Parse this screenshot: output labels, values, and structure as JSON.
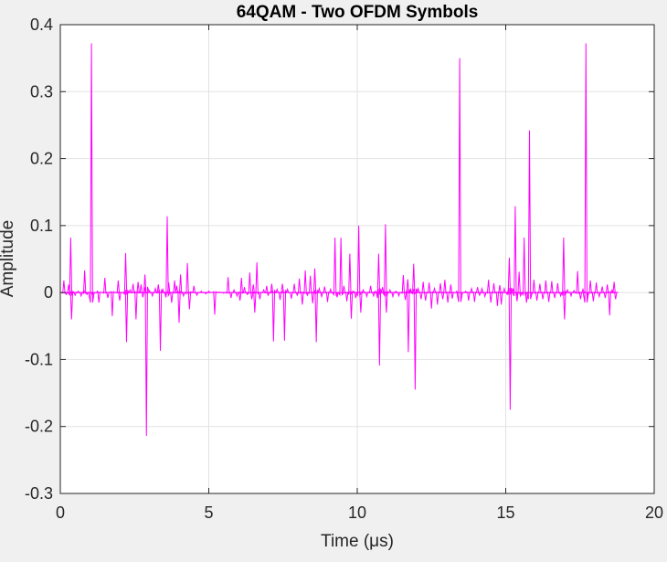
{
  "chart_data": {
    "type": "line",
    "title": "64QAM - Two OFDM Symbols",
    "xlabel": "Time (μs)",
    "ylabel": "Amplitude",
    "xlim": [
      0,
      20
    ],
    "ylim": [
      -0.3,
      0.4
    ],
    "xticks": [
      "0",
      "5",
      "10",
      "15",
      "20"
    ],
    "yticks": [
      "0.4",
      "0.3",
      "0.2",
      "0.1",
      "0",
      "-0.1",
      "-0.2",
      "-0.3"
    ],
    "grid": true,
    "line_color": "#ff00ff",
    "x_range_of_data": [
      0.1,
      18.7
    ],
    "series": [
      {
        "values": [
          {
            "x": 0.12,
            "y": 0.018
          },
          {
            "x": 0.2,
            "y": -0.003
          },
          {
            "x": 0.28,
            "y": 0.012
          },
          {
            "x": 0.35,
            "y": 0.082
          },
          {
            "x": 0.38,
            "y": -0.04
          },
          {
            "x": 0.5,
            "y": -0.004
          },
          {
            "x": 0.6,
            "y": 0.002
          },
          {
            "x": 0.7,
            "y": -0.005
          },
          {
            "x": 0.8,
            "y": 0.003
          },
          {
            "x": 0.82,
            "y": 0.033
          },
          {
            "x": 0.9,
            "y": -0.003
          },
          {
            "x": 1.05,
            "y": 0.372
          },
          {
            "x": 1.08,
            "y": -0.004
          },
          {
            "x": 1.25,
            "y": 0.002
          },
          {
            "x": 1.3,
            "y": -0.015
          },
          {
            "x": 1.5,
            "y": 0.022
          },
          {
            "x": 1.6,
            "y": -0.008
          },
          {
            "x": 1.75,
            "y": -0.035
          },
          {
            "x": 1.95,
            "y": 0.018
          },
          {
            "x": 2.0,
            "y": -0.012
          },
          {
            "x": 2.2,
            "y": 0.059
          },
          {
            "x": 2.23,
            "y": -0.074
          },
          {
            "x": 2.35,
            "y": 0.004
          },
          {
            "x": 2.45,
            "y": 0.013
          },
          {
            "x": 2.55,
            "y": -0.04
          },
          {
            "x": 2.62,
            "y": 0.016
          },
          {
            "x": 2.72,
            "y": 0.012
          },
          {
            "x": 2.78,
            "y": -0.007
          },
          {
            "x": 2.85,
            "y": 0.027
          },
          {
            "x": 2.9,
            "y": -0.214
          },
          {
            "x": 3.0,
            "y": 0.003
          },
          {
            "x": 3.1,
            "y": -0.005
          },
          {
            "x": 3.2,
            "y": 0.006
          },
          {
            "x": 3.3,
            "y": 0.012
          },
          {
            "x": 3.37,
            "y": -0.087
          },
          {
            "x": 3.45,
            "y": 0.005
          },
          {
            "x": 3.55,
            "y": -0.006
          },
          {
            "x": 3.6,
            "y": 0.114
          },
          {
            "x": 3.65,
            "y": 0.015
          },
          {
            "x": 3.75,
            "y": -0.015
          },
          {
            "x": 3.85,
            "y": 0.018
          },
          {
            "x": 3.92,
            "y": 0.01
          },
          {
            "x": 4.0,
            "y": -0.045
          },
          {
            "x": 4.05,
            "y": 0.027
          },
          {
            "x": 4.15,
            "y": -0.005
          },
          {
            "x": 4.28,
            "y": 0.044
          },
          {
            "x": 4.35,
            "y": -0.025
          },
          {
            "x": 4.5,
            "y": 0.01
          },
          {
            "x": 4.6,
            "y": -0.004
          },
          {
            "x": 4.75,
            "y": 0.002
          },
          {
            "x": 4.9,
            "y": -0.002
          },
          {
            "x": 5.0,
            "y": 0.002
          },
          {
            "x": 5.2,
            "y": -0.033
          },
          {
            "x": 5.35,
            "y": 0.001
          },
          {
            "x": 5.5,
            "y": -0.001
          },
          {
            "x": 5.65,
            "y": 0.023
          },
          {
            "x": 5.75,
            "y": -0.008
          },
          {
            "x": 5.85,
            "y": 0.004
          },
          {
            "x": 5.95,
            "y": -0.005
          },
          {
            "x": 6.05,
            "y": -0.012
          },
          {
            "x": 6.1,
            "y": 0.022
          },
          {
            "x": 6.2,
            "y": 0.008
          },
          {
            "x": 6.3,
            "y": -0.003
          },
          {
            "x": 6.38,
            "y": 0.03
          },
          {
            "x": 6.45,
            "y": -0.01
          },
          {
            "x": 6.5,
            "y": 0.012
          },
          {
            "x": 6.55,
            "y": -0.03
          },
          {
            "x": 6.62,
            "y": 0.045
          },
          {
            "x": 6.72,
            "y": -0.01
          },
          {
            "x": 6.85,
            "y": 0.004
          },
          {
            "x": 6.95,
            "y": 0.01
          },
          {
            "x": 7.0,
            "y": -0.004
          },
          {
            "x": 7.12,
            "y": 0.013
          },
          {
            "x": 7.18,
            "y": -0.073
          },
          {
            "x": 7.3,
            "y": 0.005
          },
          {
            "x": 7.4,
            "y": -0.011
          },
          {
            "x": 7.48,
            "y": 0.013
          },
          {
            "x": 7.55,
            "y": -0.072
          },
          {
            "x": 7.65,
            "y": 0.005
          },
          {
            "x": 7.78,
            "y": -0.009
          },
          {
            "x": 7.88,
            "y": 0.013
          },
          {
            "x": 7.98,
            "y": -0.004
          },
          {
            "x": 8.05,
            "y": 0.021
          },
          {
            "x": 8.15,
            "y": -0.018
          },
          {
            "x": 8.25,
            "y": 0.033
          },
          {
            "x": 8.32,
            "y": -0.004
          },
          {
            "x": 8.42,
            "y": 0.025
          },
          {
            "x": 8.5,
            "y": -0.016
          },
          {
            "x": 8.57,
            "y": 0.036
          },
          {
            "x": 8.62,
            "y": -0.074
          },
          {
            "x": 8.72,
            "y": 0.006
          },
          {
            "x": 8.8,
            "y": -0.006
          },
          {
            "x": 8.9,
            "y": 0.009
          },
          {
            "x": 9.0,
            "y": -0.014
          },
          {
            "x": 9.1,
            "y": 0.005
          },
          {
            "x": 9.25,
            "y": 0.082
          },
          {
            "x": 9.32,
            "y": -0.007
          },
          {
            "x": 9.45,
            "y": 0.082
          },
          {
            "x": 9.55,
            "y": 0.01
          },
          {
            "x": 9.65,
            "y": -0.013
          },
          {
            "x": 9.75,
            "y": 0.058
          },
          {
            "x": 9.8,
            "y": -0.039
          },
          {
            "x": 9.88,
            "y": 0.002
          },
          {
            "x": 9.95,
            "y": -0.008
          },
          {
            "x": 10.05,
            "y": 0.1
          },
          {
            "x": 10.12,
            "y": -0.03
          },
          {
            "x": 10.2,
            "y": 0.004
          },
          {
            "x": 10.32,
            "y": -0.006
          },
          {
            "x": 10.45,
            "y": 0.01
          },
          {
            "x": 10.55,
            "y": -0.005
          },
          {
            "x": 10.6,
            "y": 0.002
          },
          {
            "x": 10.68,
            "y": -0.008
          },
          {
            "x": 10.72,
            "y": 0.058
          },
          {
            "x": 10.75,
            "y": -0.109
          },
          {
            "x": 10.85,
            "y": 0.008
          },
          {
            "x": 10.95,
            "y": 0.102
          },
          {
            "x": 10.98,
            "y": -0.03
          },
          {
            "x": 11.1,
            "y": 0.004
          },
          {
            "x": 11.2,
            "y": -0.006
          },
          {
            "x": 11.3,
            "y": 0.002
          },
          {
            "x": 11.4,
            "y": -0.005
          },
          {
            "x": 11.55,
            "y": 0.026
          },
          {
            "x": 11.62,
            "y": -0.011
          },
          {
            "x": 11.7,
            "y": 0.02
          },
          {
            "x": 11.72,
            "y": -0.089
          },
          {
            "x": 11.8,
            "y": 0.005
          },
          {
            "x": 11.9,
            "y": 0.043
          },
          {
            "x": 11.95,
            "y": -0.145
          },
          {
            "x": 12.05,
            "y": 0.006
          },
          {
            "x": 12.15,
            "y": -0.01
          },
          {
            "x": 12.22,
            "y": 0.016
          },
          {
            "x": 12.3,
            "y": -0.012
          },
          {
            "x": 12.42,
            "y": 0.015
          },
          {
            "x": 12.5,
            "y": -0.024
          },
          {
            "x": 12.6,
            "y": 0.006
          },
          {
            "x": 12.7,
            "y": -0.018
          },
          {
            "x": 12.8,
            "y": 0.014
          },
          {
            "x": 12.88,
            "y": -0.01
          },
          {
            "x": 12.95,
            "y": 0.019
          },
          {
            "x": 13.05,
            "y": -0.015
          },
          {
            "x": 13.15,
            "y": 0.012
          },
          {
            "x": 13.2,
            "y": -0.009
          },
          {
            "x": 13.35,
            "y": 0.002
          },
          {
            "x": 13.45,
            "y": 0.35
          },
          {
            "x": 13.52,
            "y": -0.002
          },
          {
            "x": 13.65,
            "y": 0.002
          },
          {
            "x": 13.75,
            "y": -0.012
          },
          {
            "x": 13.85,
            "y": 0.006
          },
          {
            "x": 13.95,
            "y": -0.014
          },
          {
            "x": 14.05,
            "y": 0.008
          },
          {
            "x": 14.12,
            "y": -0.004
          },
          {
            "x": 14.2,
            "y": 0.006
          },
          {
            "x": 14.3,
            "y": -0.006
          },
          {
            "x": 14.42,
            "y": 0.019
          },
          {
            "x": 14.5,
            "y": -0.015
          },
          {
            "x": 14.6,
            "y": 0.014
          },
          {
            "x": 14.72,
            "y": -0.02
          },
          {
            "x": 14.8,
            "y": 0.011
          },
          {
            "x": 14.85,
            "y": -0.018
          },
          {
            "x": 14.95,
            "y": 0.006
          },
          {
            "x": 15.05,
            "y": -0.003
          },
          {
            "x": 15.12,
            "y": 0.052
          },
          {
            "x": 15.15,
            "y": -0.175
          },
          {
            "x": 15.25,
            "y": 0.005
          },
          {
            "x": 15.32,
            "y": 0.129
          },
          {
            "x": 15.38,
            "y": -0.013
          },
          {
            "x": 15.45,
            "y": 0.031
          },
          {
            "x": 15.5,
            "y": -0.005
          },
          {
            "x": 15.62,
            "y": 0.082
          },
          {
            "x": 15.7,
            "y": -0.015
          },
          {
            "x": 15.8,
            "y": 0.242
          },
          {
            "x": 15.85,
            "y": -0.002
          },
          {
            "x": 15.95,
            "y": 0.019
          },
          {
            "x": 16.05,
            "y": -0.012
          },
          {
            "x": 16.15,
            "y": 0.013
          },
          {
            "x": 16.25,
            "y": -0.01
          },
          {
            "x": 16.35,
            "y": 0.018
          },
          {
            "x": 16.45,
            "y": -0.014
          },
          {
            "x": 16.55,
            "y": 0.017
          },
          {
            "x": 16.65,
            "y": -0.008
          },
          {
            "x": 16.75,
            "y": 0.014
          },
          {
            "x": 16.85,
            "y": -0.005
          },
          {
            "x": 16.95,
            "y": 0.082
          },
          {
            "x": 16.98,
            "y": -0.04
          },
          {
            "x": 17.08,
            "y": 0.004
          },
          {
            "x": 17.2,
            "y": -0.005
          },
          {
            "x": 17.3,
            "y": 0.003
          },
          {
            "x": 17.42,
            "y": 0.032
          },
          {
            "x": 17.52,
            "y": -0.01
          },
          {
            "x": 17.6,
            "y": 0.005
          },
          {
            "x": 17.7,
            "y": 0.372
          },
          {
            "x": 17.75,
            "y": -0.004
          },
          {
            "x": 17.85,
            "y": 0.018
          },
          {
            "x": 17.95,
            "y": -0.013
          },
          {
            "x": 18.05,
            "y": 0.015
          },
          {
            "x": 18.15,
            "y": -0.006
          },
          {
            "x": 18.25,
            "y": 0.009
          },
          {
            "x": 18.35,
            "y": -0.008
          },
          {
            "x": 18.42,
            "y": 0.012
          },
          {
            "x": 18.5,
            "y": -0.034
          },
          {
            "x": 18.58,
            "y": 0.004
          },
          {
            "x": 18.65,
            "y": 0.016
          },
          {
            "x": 18.7,
            "y": -0.01
          }
        ]
      }
    ]
  }
}
